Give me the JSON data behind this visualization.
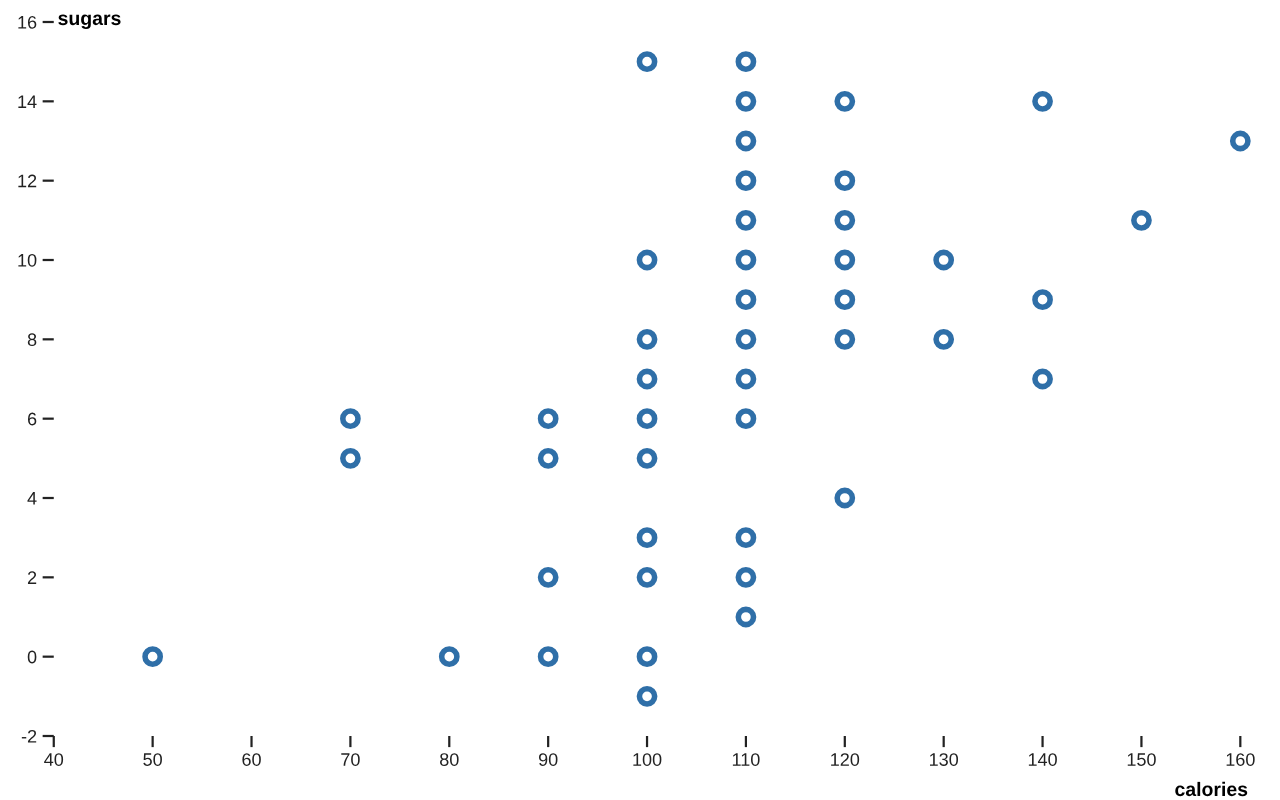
{
  "chart_data": {
    "type": "scatter",
    "xlabel": "calories",
    "ylabel": "sugars",
    "x": [
      50,
      70,
      70,
      80,
      90,
      90,
      90,
      90,
      100,
      100,
      100,
      100,
      100,
      100,
      100,
      100,
      100,
      100,
      110,
      110,
      110,
      110,
      110,
      110,
      110,
      110,
      110,
      110,
      110,
      110,
      110,
      120,
      120,
      120,
      120,
      120,
      120,
      120,
      130,
      130,
      140,
      140,
      140,
      150,
      160
    ],
    "values": [
      0,
      6,
      5,
      0,
      6,
      5,
      2,
      0,
      15,
      10,
      8,
      7,
      6,
      5,
      3,
      2,
      0,
      -1,
      15,
      14,
      13,
      12,
      11,
      10,
      9,
      8,
      7,
      6,
      3,
      2,
      1,
      14,
      12,
      11,
      10,
      9,
      8,
      4,
      10,
      8,
      14,
      9,
      7,
      11,
      13
    ],
    "color": "#2f6fa8",
    "marker": "circle",
    "grid": false,
    "legend": false,
    "xlim": [
      40,
      160
    ],
    "xticks": [
      40,
      50,
      60,
      70,
      80,
      90,
      100,
      110,
      120,
      130,
      140,
      150,
      160
    ],
    "ylim": [
      -2,
      16
    ],
    "yticks": [
      -2,
      0,
      2,
      4,
      6,
      8,
      10,
      12,
      14,
      16
    ]
  }
}
